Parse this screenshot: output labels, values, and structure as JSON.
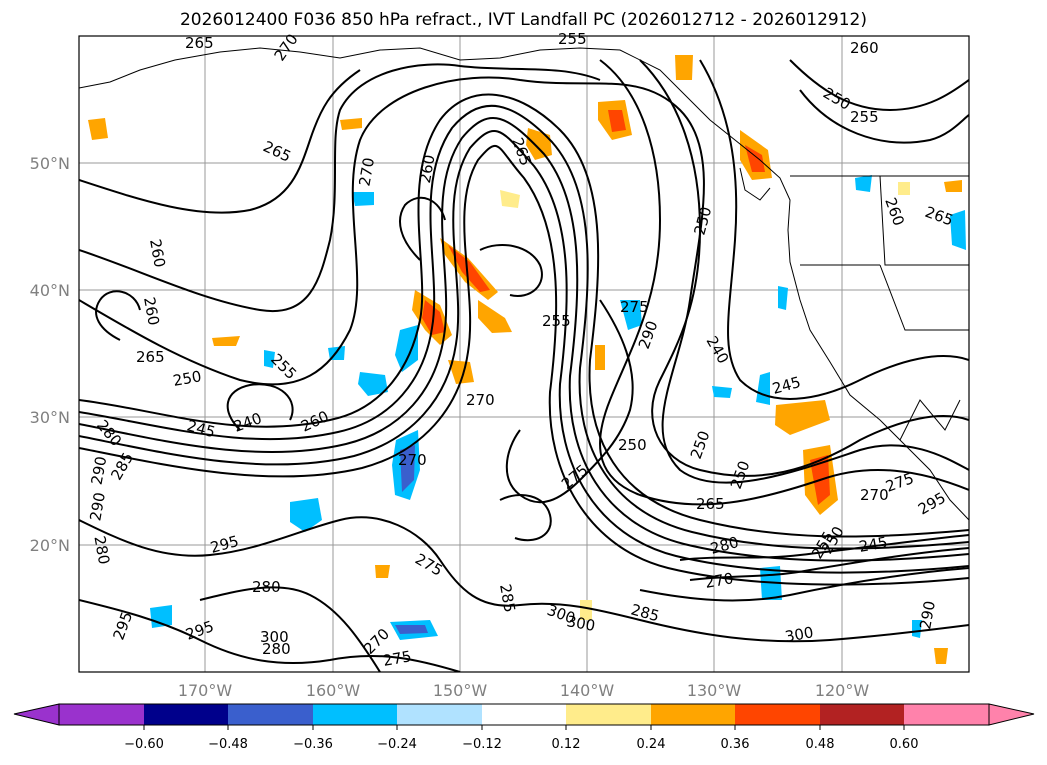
{
  "title": "2026012400 F036 850 hPa refract., IVT Landfall PC (2026012712 - 2026012912)",
  "axes": {
    "lat_labels": [
      "50°N",
      "40°N",
      "30°N",
      "20°N"
    ],
    "lon_labels": [
      "170°W",
      "160°W",
      "150°W",
      "140°W",
      "130°W",
      "120°W"
    ]
  },
  "contour_labels": [
    "265",
    "270",
    "255",
    "260",
    "250",
    "255",
    "265",
    "270",
    "260",
    "265",
    "260",
    "265",
    "260",
    "260",
    "265",
    "250",
    "255",
    "245",
    "240",
    "260",
    "250",
    "255",
    "275",
    "290",
    "240",
    "245",
    "270",
    "250",
    "250",
    "250",
    "275",
    "265",
    "280",
    "270",
    "285",
    "270",
    "275",
    "285",
    "290",
    "280",
    "290",
    "285",
    "280",
    "295",
    "280",
    "295",
    "300",
    "295",
    "300",
    "280",
    "270",
    "275",
    "255",
    "250",
    "245",
    "275",
    "290",
    "300",
    "270",
    "295",
    "300"
  ],
  "colorbar": {
    "ticks": [
      "−0.60",
      "−0.48",
      "−0.36",
      "−0.24",
      "−0.12",
      "0.12",
      "0.24",
      "0.36",
      "0.48",
      "0.60"
    ],
    "colors": [
      "#9a32cd",
      "#00008b",
      "#3a5fcd",
      "#00bfff",
      "#b0e2ff",
      "#ffffff",
      "#ffec8b",
      "#ffa500",
      "#ff4500",
      "#b22222",
      "#ff82ab"
    ]
  }
}
